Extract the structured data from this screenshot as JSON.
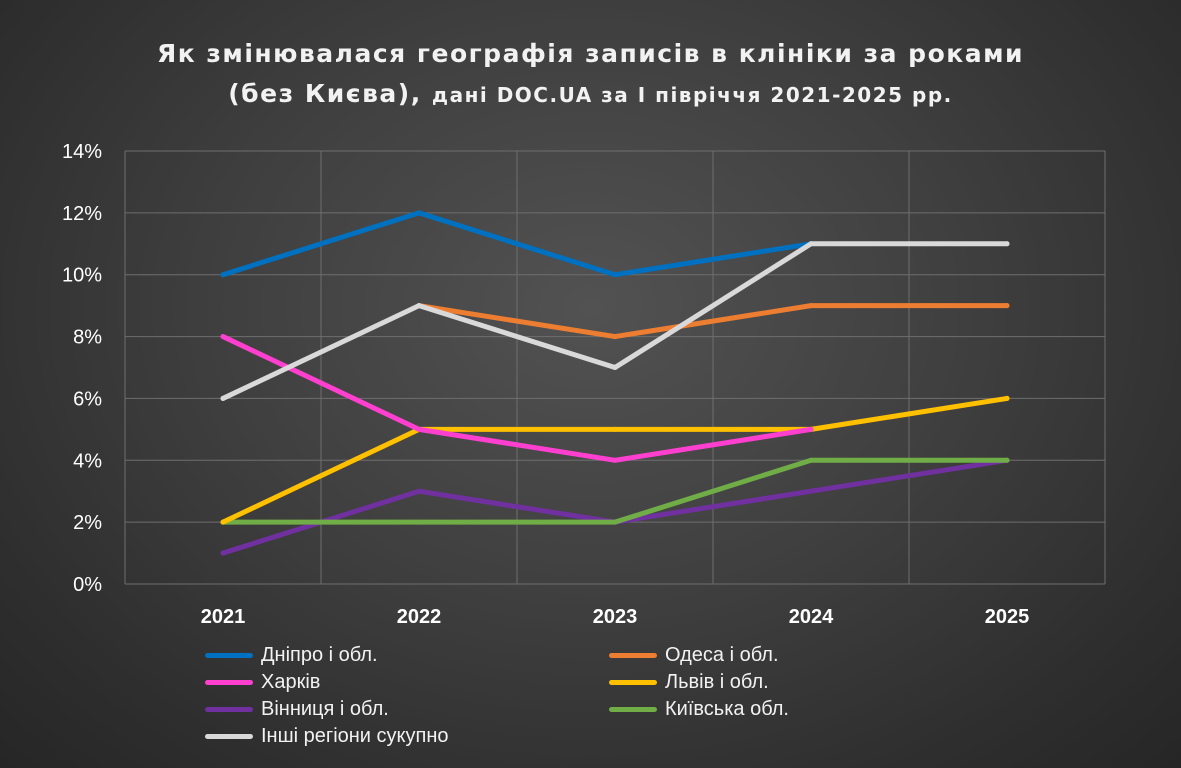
{
  "title_line1": "Як змінювалася географія записів в клініки за роками",
  "title_line2_main": "(без Києва),",
  "title_line2_sub": "дані DOC.UA за І півріччя 2021-2025 рр.",
  "chart_data": {
    "type": "line",
    "title": "Як змінювалася географія записів в клініки за роками (без Києва), дані DOC.UA за І півріччя 2021-2025 рр.",
    "x": [
      "2021",
      "2022",
      "2023",
      "2024",
      "2025"
    ],
    "y_ticks": [
      "0%",
      "2%",
      "4%",
      "6%",
      "8%",
      "10%",
      "12%",
      "14%"
    ],
    "ylim": [
      0,
      14
    ],
    "y_unit": "%",
    "grid": true,
    "legend_position": "bottom",
    "series": [
      {
        "name": "Дніпро і обл.",
        "color": "#0070c0",
        "values": [
          10,
          12,
          10,
          11,
          null
        ]
      },
      {
        "name": "Одеса і обл.",
        "color": "#ed7d31",
        "values": [
          null,
          9,
          8,
          9,
          9
        ]
      },
      {
        "name": "Харків",
        "color": "#ff3fcf",
        "values": [
          8,
          5,
          4,
          5,
          null
        ]
      },
      {
        "name": "Львів і обл.",
        "color": "#ffc000",
        "values": [
          2,
          5,
          5,
          5,
          6
        ]
      },
      {
        "name": "Вінниця і обл.",
        "color": "#7030a0",
        "values": [
          1,
          3,
          2,
          3,
          4
        ]
      },
      {
        "name": "Київська обл.",
        "color": "#70ad47",
        "values": [
          2,
          2,
          2,
          4,
          4
        ]
      },
      {
        "name": "Інші регіони сукупно",
        "color": "#d9d9d9",
        "values": [
          6,
          9,
          7,
          11,
          11
        ]
      }
    ],
    "draw_order": [
      4,
      5,
      1,
      3,
      2,
      0,
      6
    ]
  }
}
